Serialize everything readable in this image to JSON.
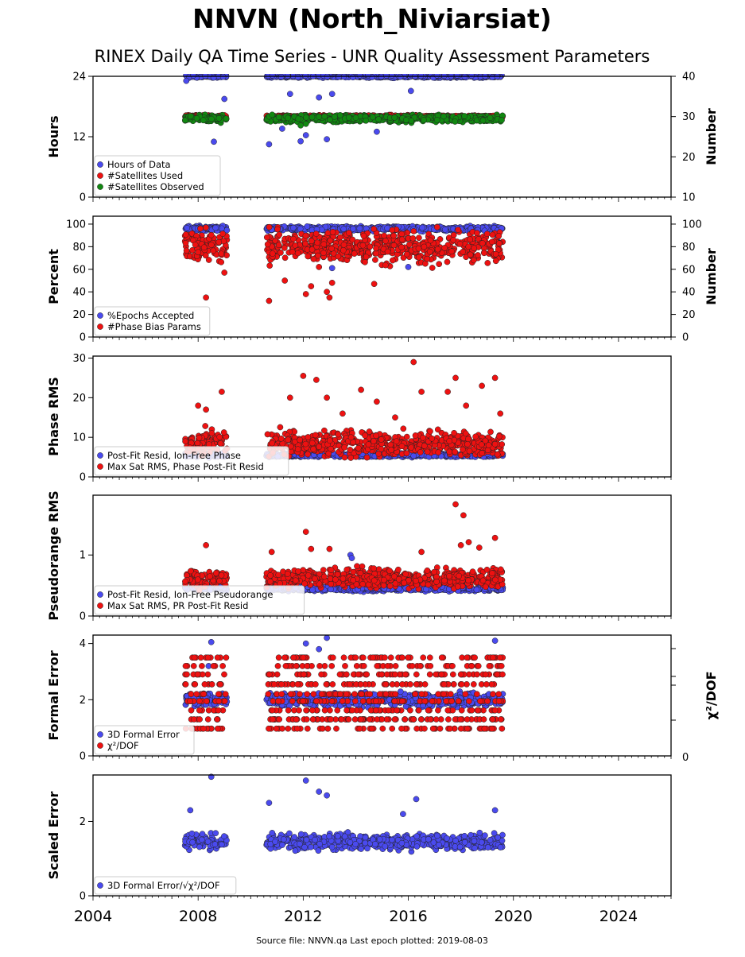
{
  "title": "NNVN (North_Niviarsiat)",
  "subtitle": "RINEX Daily QA Time Series - UNR Quality Assessment Parameters",
  "footer": "Source file: NNVN.qa Last epoch plotted: 2019-08-03",
  "colors": {
    "blue": "#4a4aee",
    "red": "#ee1111",
    "green": "#118811",
    "edge": "#222222"
  },
  "chart_data": [
    {
      "type": "scatter",
      "panel": "hours",
      "ylabel": "Hours",
      "ylim": [
        0,
        24
      ],
      "yticks": [
        "0",
        "12",
        "24"
      ],
      "ylabel_right": "Number",
      "ylim_right": [
        10,
        40
      ],
      "yticks_right": [
        "10",
        "20",
        "30",
        "40"
      ],
      "xlim": [
        2004,
        2026
      ],
      "xticks": [
        "2004",
        "2008",
        "2012",
        "2016",
        "2020",
        "2024"
      ],
      "legend_position": "lower-left",
      "series": [
        {
          "name": "Hours of Data",
          "color": "blue",
          "axis": "left",
          "segments": [
            [
              2007.5,
              2009.1
            ],
            [
              2010.6,
              2019.6
            ]
          ],
          "base": 24,
          "spread": 0.4,
          "x": [
            2007.55,
            2008.6,
            2009.0,
            2010.7,
            2011.2,
            2011.5,
            2011.9,
            2012.1,
            2012.3,
            2012.6,
            2012.9,
            2013.1,
            2014.8,
            2016.1
          ],
          "y": [
            23.1,
            11.0,
            19.5,
            10.5,
            13.6,
            20.5,
            11.1,
            12.3,
            16.1,
            19.8,
            11.5,
            20.5,
            13.0,
            21.1
          ]
        },
        {
          "name": "#Satellites Used",
          "color": "red",
          "axis": "right",
          "segments": [
            [
              2007.5,
              2009.1
            ],
            [
              2010.6,
              2019.6
            ]
          ],
          "base": 30,
          "spread": 0.5,
          "x": [],
          "y": []
        },
        {
          "name": "#Satellites Observed",
          "color": "green",
          "axis": "right",
          "segments": [
            [
              2007.5,
              2009.1
            ],
            [
              2010.6,
              2019.6
            ]
          ],
          "base": 29.5,
          "spread": 1.2,
          "x": [
            2011.9,
            2012.1
          ],
          "y": [
            27.8,
            28.2
          ]
        }
      ]
    },
    {
      "type": "scatter",
      "panel": "percent",
      "ylabel": "Percent",
      "ylim": [
        0,
        107
      ],
      "yticks": [
        "0",
        "20",
        "40",
        "60",
        "80",
        "100"
      ],
      "ylabel_right": "Number",
      "ylim_right": [
        0,
        107
      ],
      "yticks_right": [
        "0",
        "20",
        "40",
        "60",
        "80",
        "100"
      ],
      "xlim": [
        2004,
        2026
      ],
      "legend_position": "lower-left",
      "series": [
        {
          "name": "%Epochs Accepted",
          "color": "blue",
          "axis": "left",
          "segments": [
            [
              2007.5,
              2009.1
            ],
            [
              2010.6,
              2019.6
            ]
          ],
          "base": 96,
          "spread": 3,
          "x": [
            2013.1,
            2016.0,
            2019.4
          ],
          "y": [
            61,
            62,
            88
          ]
        },
        {
          "name": "#Phase Bias Params",
          "color": "red",
          "axis": "right",
          "segments": [
            [
              2007.5,
              2009.1
            ],
            [
              2010.6,
              2019.6
            ]
          ],
          "base": 80,
          "spread": 20,
          "x": [
            2008.3,
            2009.0,
            2010.7,
            2011.3,
            2012.1,
            2012.3,
            2012.6,
            2012.9,
            2013.0,
            2013.1,
            2014.7
          ],
          "y": [
            35,
            57,
            32,
            50,
            38,
            45,
            62,
            40,
            35,
            48,
            47
          ]
        }
      ]
    },
    {
      "type": "scatter",
      "panel": "phase-rms",
      "ylabel": "Phase RMS",
      "ylim": [
        0,
        30.5
      ],
      "yticks": [
        "0",
        "10",
        "20",
        "30"
      ],
      "xlim": [
        2004,
        2026
      ],
      "legend_position": "lower-left",
      "series": [
        {
          "name": "Post-Fit Resid, Ion-Free Phase",
          "color": "blue",
          "axis": "left",
          "segments": [
            [
              2007.5,
              2009.1
            ],
            [
              2010.6,
              2019.6
            ]
          ],
          "base": 5.5,
          "spread": 0.7,
          "x": [],
          "y": []
        },
        {
          "name": "Max Sat RMS, Phase Post-Fit Resid",
          "color": "red",
          "axis": "left",
          "segments": [
            [
              2007.5,
              2009.1
            ],
            [
              2010.6,
              2019.6
            ]
          ],
          "base": 8.5,
          "spread": 4.5,
          "x": [
            2008.0,
            2008.3,
            2008.9,
            2011.5,
            2012.0,
            2012.5,
            2012.9,
            2013.5,
            2014.2,
            2014.8,
            2015.5,
            2016.2,
            2016.5,
            2017.5,
            2017.8,
            2018.2,
            2018.8,
            2019.3,
            2019.5
          ],
          "y": [
            18,
            17,
            21.5,
            20,
            25.5,
            24.5,
            20,
            16,
            22,
            19,
            15,
            29,
            21.5,
            21.5,
            25,
            18,
            23,
            25,
            16
          ]
        }
      ]
    },
    {
      "type": "scatter",
      "panel": "pseudorange-rms",
      "ylabel": "Pseudorange RMS",
      "ylim": [
        0,
        1.98
      ],
      "yticks": [
        "0",
        "1"
      ],
      "xlim": [
        2004,
        2026
      ],
      "legend_position": "lower-left",
      "series": [
        {
          "name": "Post-Fit Resid, Ion-Free Pseudorange",
          "color": "blue",
          "axis": "left",
          "segments": [
            [
              2007.5,
              2009.1
            ],
            [
              2010.6,
              2019.6
            ]
          ],
          "base": 0.45,
          "spread": 0.06,
          "x": [
            2013.8,
            2013.85
          ],
          "y": [
            1.0,
            0.95
          ]
        },
        {
          "name": "Max Sat RMS, PR Post-Fit Resid",
          "color": "red",
          "axis": "left",
          "segments": [
            [
              2007.5,
              2009.1
            ],
            [
              2010.6,
              2019.6
            ]
          ],
          "base": 0.62,
          "spread": 0.22,
          "x": [
            2008.3,
            2010.8,
            2012.1,
            2012.3,
            2013.0,
            2016.5,
            2017.8,
            2018.0,
            2018.1,
            2018.3,
            2018.7,
            2019.3
          ],
          "y": [
            1.16,
            1.05,
            1.38,
            1.1,
            1.1,
            1.05,
            1.83,
            1.16,
            1.65,
            1.21,
            1.12,
            1.28
          ]
        }
      ]
    },
    {
      "type": "scatter",
      "panel": "formal-error",
      "ylabel": "Formal Error",
      "ylim": [
        0,
        4.3
      ],
      "yticks": [
        "0",
        "2",
        "4"
      ],
      "ylabel_right": "χ²/DOF",
      "yticks_right": [
        "0"
      ],
      "xlim": [
        2004,
        2026
      ],
      "legend_position": "lower-left",
      "series": [
        {
          "name": "3D Formal Error",
          "color": "blue",
          "axis": "left",
          "segments": [
            [
              2007.5,
              2009.1
            ],
            [
              2010.6,
              2019.6
            ]
          ],
          "base": 2.0,
          "spread": 0.35,
          "x": [
            2008.5,
            2008.4,
            2012.1,
            2012.9,
            2012.6,
            2019.3
          ],
          "y": [
            4.05,
            3.2,
            4.0,
            4.2,
            3.8,
            4.1
          ]
        },
        {
          "name": "χ²/DOF",
          "color": "red",
          "axis": "left",
          "segments": [
            [
              2007.5,
              2009.1
            ],
            [
              2010.6,
              2019.6
            ]
          ],
          "levels": [
            0.97,
            1.3,
            1.62,
            1.95,
            2.2,
            2.55,
            2.9,
            3.2,
            3.5
          ],
          "x": [],
          "y": []
        }
      ]
    },
    {
      "type": "scatter",
      "panel": "scaled-error",
      "ylabel": "Scaled Error",
      "ylim": [
        0,
        3.25
      ],
      "yticks": [
        "0",
        "2"
      ],
      "xlim": [
        2004,
        2026
      ],
      "xticks": [
        "2004",
        "2008",
        "2012",
        "2016",
        "2020",
        "2024"
      ],
      "legend_position": "lower-left",
      "series": [
        {
          "name": "3D Formal Error/√χ²/DOF",
          "color": "blue",
          "axis": "left",
          "segments": [
            [
              2007.5,
              2009.1
            ],
            [
              2010.6,
              2019.6
            ]
          ],
          "base": 1.45,
          "spread": 0.3,
          "x": [
            2007.7,
            2008.5,
            2010.7,
            2012.1,
            2012.6,
            2012.9,
            2015.8,
            2016.3,
            2019.3
          ],
          "y": [
            2.3,
            3.2,
            2.5,
            3.1,
            2.8,
            2.7,
            2.2,
            2.6,
            2.3
          ]
        }
      ]
    }
  ]
}
